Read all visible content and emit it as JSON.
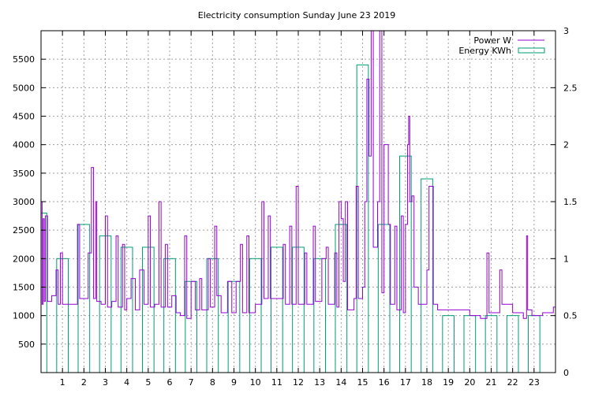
{
  "chart_data": {
    "type": "line",
    "title": "Electricity consumption Sunday June 23 2019",
    "xlabel": "",
    "ylabel": "",
    "xlim": [
      0,
      24
    ],
    "ylim": [
      0,
      6000
    ],
    "y2lim": [
      0,
      3
    ],
    "grid": true,
    "legend_position": "top-right",
    "x_ticks": [
      1,
      2,
      3,
      4,
      5,
      6,
      7,
      8,
      9,
      10,
      11,
      12,
      13,
      14,
      15,
      16,
      17,
      18,
      19,
      20,
      21,
      22,
      23
    ],
    "y_ticks": [
      500,
      1000,
      1500,
      2000,
      2500,
      3000,
      3500,
      4000,
      4500,
      5000,
      5500
    ],
    "y2_ticks": [
      0,
      0.5,
      1,
      1.5,
      2,
      2.5,
      3
    ],
    "y2_tick_labels": [
      "0",
      "0.5",
      "1",
      "1.5",
      "2",
      "2.5",
      "3"
    ],
    "series": [
      {
        "name": "Power W",
        "color": "#9400d3",
        "axis": "left",
        "style": "steps",
        "points": [
          [
            0.0,
            3000
          ],
          [
            0.05,
            1200
          ],
          [
            0.1,
            2700
          ],
          [
            0.15,
            1250
          ],
          [
            0.2,
            2750
          ],
          [
            0.3,
            1250
          ],
          [
            0.4,
            1250
          ],
          [
            0.5,
            1350
          ],
          [
            0.6,
            1350
          ],
          [
            0.7,
            1800
          ],
          [
            0.8,
            1200
          ],
          [
            0.9,
            2100
          ],
          [
            1.0,
            1200
          ],
          [
            1.2,
            1200
          ],
          [
            1.5,
            1200
          ],
          [
            1.7,
            2600
          ],
          [
            1.8,
            1300
          ],
          [
            2.0,
            1300
          ],
          [
            2.2,
            2100
          ],
          [
            2.35,
            3600
          ],
          [
            2.45,
            1300
          ],
          [
            2.55,
            3000
          ],
          [
            2.6,
            1250
          ],
          [
            2.8,
            1200
          ],
          [
            3.0,
            2750
          ],
          [
            3.1,
            1150
          ],
          [
            3.3,
            1250
          ],
          [
            3.5,
            2400
          ],
          [
            3.6,
            1150
          ],
          [
            3.8,
            2250
          ],
          [
            3.9,
            1100
          ],
          [
            4.0,
            1300
          ],
          [
            4.2,
            1650
          ],
          [
            4.4,
            1100
          ],
          [
            4.6,
            1800
          ],
          [
            4.8,
            1200
          ],
          [
            5.0,
            2750
          ],
          [
            5.1,
            1150
          ],
          [
            5.3,
            1200
          ],
          [
            5.5,
            3000
          ],
          [
            5.6,
            1150
          ],
          [
            5.8,
            2250
          ],
          [
            5.9,
            1150
          ],
          [
            6.1,
            1350
          ],
          [
            6.3,
            1050
          ],
          [
            6.5,
            1000
          ],
          [
            6.7,
            2400
          ],
          [
            6.8,
            950
          ],
          [
            7.0,
            1600
          ],
          [
            7.2,
            1100
          ],
          [
            7.4,
            1650
          ],
          [
            7.5,
            1100
          ],
          [
            7.8,
            2000
          ],
          [
            7.9,
            1150
          ],
          [
            8.1,
            2570
          ],
          [
            8.2,
            1350
          ],
          [
            8.4,
            1050
          ],
          [
            8.7,
            1600
          ],
          [
            8.9,
            1050
          ],
          [
            9.1,
            1600
          ],
          [
            9.3,
            2250
          ],
          [
            9.4,
            1050
          ],
          [
            9.6,
            2400
          ],
          [
            9.7,
            1050
          ],
          [
            10.0,
            1200
          ],
          [
            10.3,
            3000
          ],
          [
            10.4,
            1300
          ],
          [
            10.6,
            2750
          ],
          [
            10.7,
            1300
          ],
          [
            11.0,
            1300
          ],
          [
            11.3,
            2250
          ],
          [
            11.4,
            1200
          ],
          [
            11.6,
            2570
          ],
          [
            11.7,
            1200
          ],
          [
            11.9,
            3270
          ],
          [
            12.0,
            1200
          ],
          [
            12.3,
            2100
          ],
          [
            12.4,
            1200
          ],
          [
            12.7,
            2570
          ],
          [
            12.8,
            1250
          ],
          [
            13.1,
            2000
          ],
          [
            13.3,
            2200
          ],
          [
            13.4,
            1200
          ],
          [
            13.7,
            2100
          ],
          [
            13.8,
            1150
          ],
          [
            13.9,
            3000
          ],
          [
            14.0,
            2700
          ],
          [
            14.1,
            1600
          ],
          [
            14.2,
            3000
          ],
          [
            14.3,
            1100
          ],
          [
            14.6,
            1300
          ],
          [
            14.7,
            3270
          ],
          [
            14.8,
            1300
          ],
          [
            15.0,
            1500
          ],
          [
            15.1,
            3000
          ],
          [
            15.2,
            5150
          ],
          [
            15.3,
            3800
          ],
          [
            15.4,
            6000
          ],
          [
            15.5,
            2200
          ],
          [
            15.7,
            3000
          ],
          [
            15.8,
            6000
          ],
          [
            15.9,
            1400
          ],
          [
            16.0,
            4000
          ],
          [
            16.2,
            2600
          ],
          [
            16.3,
            1200
          ],
          [
            16.5,
            2570
          ],
          [
            16.6,
            1100
          ],
          [
            16.8,
            2750
          ],
          [
            16.9,
            1050
          ],
          [
            17.0,
            2600
          ],
          [
            17.1,
            4000
          ],
          [
            17.15,
            4500
          ],
          [
            17.2,
            3000
          ],
          [
            17.3,
            3100
          ],
          [
            17.4,
            1500
          ],
          [
            17.6,
            1200
          ],
          [
            18.0,
            1800
          ],
          [
            18.1,
            3270
          ],
          [
            18.3,
            1200
          ],
          [
            18.5,
            1100
          ],
          [
            20.0,
            1000
          ],
          [
            20.5,
            950
          ],
          [
            20.8,
            2100
          ],
          [
            20.9,
            1050
          ],
          [
            21.4,
            1800
          ],
          [
            21.5,
            1200
          ],
          [
            22.0,
            1050
          ],
          [
            22.5,
            950
          ],
          [
            22.65,
            2400
          ],
          [
            22.7,
            1100
          ],
          [
            22.9,
            1000
          ],
          [
            23.4,
            1050
          ],
          [
            23.9,
            1150
          ],
          [
            24.0,
            1150
          ]
        ]
      },
      {
        "name": "Energy KWh",
        "color": "#009e73",
        "axis": "right",
        "style": "boxes",
        "hours": [
          0,
          1,
          2,
          3,
          4,
          5,
          6,
          7,
          8,
          9,
          10,
          11,
          12,
          13,
          14,
          15,
          16,
          17,
          18,
          19,
          20,
          21,
          22,
          23
        ],
        "values": [
          1.4,
          1.0,
          1.3,
          1.2,
          1.1,
          1.1,
          1.0,
          0.8,
          1.0,
          0.8,
          1.0,
          1.1,
          1.1,
          1.0,
          1.3,
          2.7,
          1.3,
          1.9,
          1.7,
          0.5,
          0.5,
          0.5,
          0.5,
          0.5
        ]
      }
    ]
  }
}
